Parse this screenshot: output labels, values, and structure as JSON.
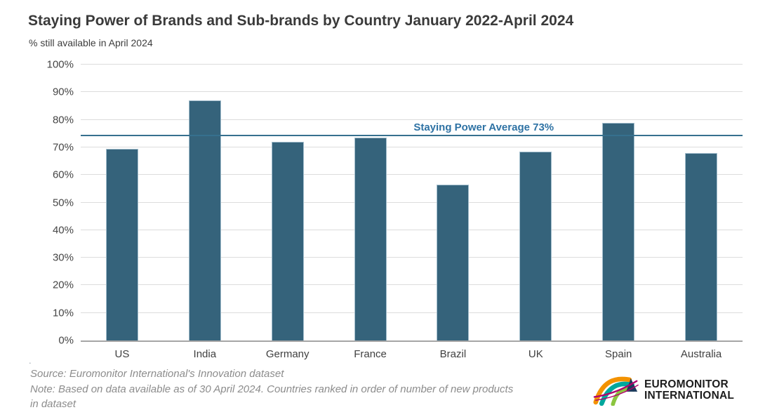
{
  "title": "Staying Power of Brands and Sub-brands by Country January 2022-April 2024",
  "subtitle": "% still available in April 2024",
  "chart_data": {
    "type": "bar",
    "title": "Staying Power of Brands and Sub-brands by Country January 2022-April 2024",
    "xlabel": "",
    "ylabel": "% still available in April 2024",
    "ylim": [
      0,
      100
    ],
    "grid": "horizontal",
    "categories": [
      "US",
      "India",
      "Germany",
      "France",
      "Brazil",
      "UK",
      "Spain",
      "Australia"
    ],
    "values": [
      69.5,
      87,
      72,
      73.5,
      56.5,
      68.5,
      79,
      68
    ],
    "y_ticks": [
      {
        "label": "0%",
        "value": 0
      },
      {
        "label": "10%",
        "value": 10
      },
      {
        "label": "20%",
        "value": 20
      },
      {
        "label": "30%",
        "value": 30
      },
      {
        "label": "40%",
        "value": 40
      },
      {
        "label": "50%",
        "value": 50
      },
      {
        "label": "60%",
        "value": 60
      },
      {
        "label": "70%",
        "value": 70
      },
      {
        "label": "80%",
        "value": 80
      },
      {
        "label": "90%",
        "value": 90
      },
      {
        "label": "100%",
        "value": 100
      }
    ],
    "average_line": {
      "label": "Staying Power Average 73%",
      "value": 73,
      "rendered_at_pct": 74
    },
    "colors": {
      "bar": "#35637b",
      "bar_border": "#a3becd",
      "gridline": "#dcdcdc",
      "axis": "#a6a6a6",
      "avg_line": "#36708e",
      "avg_label": "#2e72a4"
    }
  },
  "footer": {
    "stray_mark": ".",
    "lines": [
      "Source: Euromonitor International's Innovation dataset",
      "Note: Based on data available as of 30 April 2024. Countries ranked in order of number of new products",
      "in dataset"
    ]
  },
  "logo": {
    "line1": "EUROMONITOR",
    "line2": "INTERNATIONAL",
    "colors": {
      "orange": "#f39200",
      "teal": "#00a79d",
      "green": "#8bc53f",
      "magenta": "#b0006d",
      "navy": "#1b3a5c"
    }
  }
}
